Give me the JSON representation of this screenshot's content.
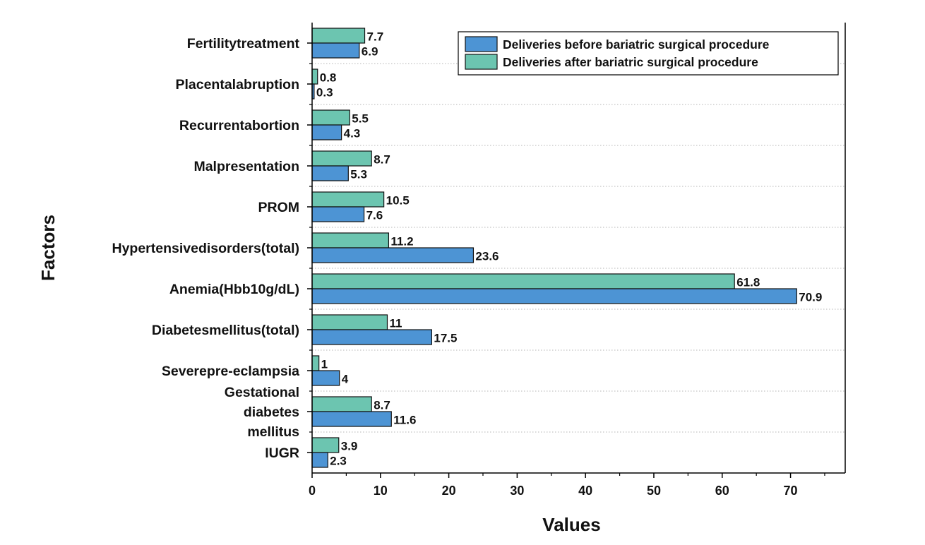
{
  "chart_data": {
    "type": "bar",
    "orientation": "horizontal",
    "ylabel": "Factors",
    "xlabel": "Values",
    "xlim": [
      0,
      78
    ],
    "xticks": [
      0,
      10,
      20,
      30,
      40,
      50,
      60,
      70
    ],
    "grid": "horizontal dotted",
    "legend_position": "top-right",
    "categories": [
      [
        "Fertilitytreatment"
      ],
      [
        "Placentalabruption"
      ],
      [
        "Recurrentabortion"
      ],
      [
        "Malpresentation"
      ],
      [
        "PROM"
      ],
      [
        "Hypertensivedisorders(total)"
      ],
      [
        "Anemia(Hbb10g/dL)"
      ],
      [
        "Diabetesmellitus(total)"
      ],
      [
        "Severepre-eclampsia"
      ],
      [
        "Gestational",
        "diabetes",
        "mellitus"
      ],
      [
        "IUGR"
      ]
    ],
    "series": [
      {
        "name": "Deliveries after bariatric surgical procedure",
        "color": "#6cc5b0",
        "values": [
          7.7,
          0.8,
          5.5,
          8.7,
          10.5,
          11.2,
          61.8,
          11,
          1,
          8.7,
          3.9
        ],
        "labels": [
          "7.7",
          "0.8",
          "5.5",
          "8.7",
          "10.5",
          "11.2",
          "61.8",
          "11",
          "1",
          "8.7",
          "3.9"
        ]
      },
      {
        "name": "Deliveries before bariatric surgical procedure",
        "color": "#4d94d4",
        "values": [
          6.9,
          0.3,
          4.3,
          5.3,
          7.6,
          23.6,
          70.9,
          17.5,
          4,
          11.6,
          2.3
        ],
        "labels": [
          "6.9",
          "0.3",
          "4.3",
          "5.3",
          "7.6",
          "23.6",
          "70.9",
          "17.5",
          "4",
          "11.6",
          "2.3"
        ]
      }
    ],
    "legend": [
      {
        "name": "Deliveries before bariatric surgical procedure",
        "color": "#4d94d4"
      },
      {
        "name": "Deliveries after bariatric surgical procedure",
        "color": "#6cc5b0"
      }
    ]
  }
}
